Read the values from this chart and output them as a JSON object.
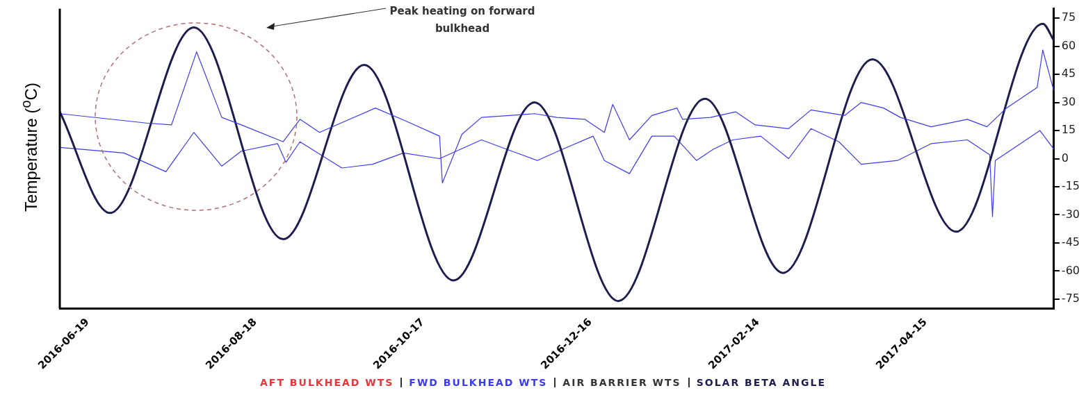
{
  "chart_data": {
    "type": "line",
    "ylabel": "Temperature ($^{o}$C)",
    "legend": "bottom",
    "xlim": [
      "2016-06-09",
      "2017-05-31"
    ],
    "xticks": [
      "2016-06-19",
      "2016-08-18",
      "2016-10-17",
      "2016-12-16",
      "2017-02-14",
      "2017-04-15"
    ],
    "ylim": [
      -80,
      80
    ],
    "yticks": [
      -75,
      -60,
      -45,
      -30,
      -15,
      0,
      15,
      30,
      45,
      60,
      75
    ],
    "annotations": [
      "Peak heating on forward bulkhead"
    ],
    "series": [
      {
        "name": "AFT BULKHEAD WTS",
        "color": "#e2393f"
      },
      {
        "name": "FWD BULKHEAD WTS",
        "color": "#3b3bef",
        "x": [
          "2016-06-09",
          "2016-07-10",
          "2016-07-19",
          "2016-07-28",
          "2016-08-06",
          "2016-08-13",
          "2016-08-28",
          "2016-09-03",
          "2016-09-10",
          "2016-09-30",
          "2016-10-11",
          "2016-10-23",
          "2016-10-24",
          "2016-10-31",
          "2016-11-07",
          "2016-11-17",
          "2016-11-26",
          "2016-12-04",
          "2016-12-14",
          "2016-12-21",
          "2016-12-24",
          "2016-12-30",
          "2017-01-07",
          "2017-01-16",
          "2017-01-18",
          "2017-01-28",
          "2017-02-06",
          "2017-02-13",
          "2017-02-25",
          "2017-03-05",
          "2017-03-17",
          "2017-03-23",
          "2017-03-31",
          "2017-04-06",
          "2017-04-17",
          "2017-04-30",
          "2017-05-07",
          "2017-05-14",
          "2017-05-25",
          "2017-05-27",
          "2017-05-31"
        ],
        "values": [
          24,
          19,
          18,
          57,
          22,
          18,
          9,
          21,
          14,
          27,
          20,
          12,
          -13,
          13,
          22,
          23,
          24,
          22,
          21,
          14,
          29,
          10,
          23,
          27,
          21,
          22,
          25,
          18,
          16,
          26,
          23,
          30,
          27,
          22,
          17,
          21,
          17,
          27,
          38,
          58,
          36
        ]
      },
      {
        "name": "AIR BARRIER WTS",
        "color": "#333333"
      },
      {
        "name": "SOLAR BETA ANGLE",
        "color": "#1d1d4e",
        "x": [
          "2016-06-09",
          "2016-06-27",
          "2016-07-27",
          "2016-08-28",
          "2016-09-26",
          "2016-10-28",
          "2016-11-26",
          "2016-12-26",
          "2017-01-26",
          "2017-02-23",
          "2017-03-27",
          "2017-04-26",
          "2017-05-27",
          "2017-05-31"
        ],
        "values": [
          25,
          -29,
          70,
          -43,
          50,
          -65,
          30,
          -76,
          32,
          -61,
          53,
          -39,
          72,
          63
        ]
      },
      {
        "color": "#3b3bef",
        "x": [
          "2016-06-09",
          "2016-07-02",
          "2016-07-17",
          "2016-07-27",
          "2016-08-06",
          "2016-08-13",
          "2016-08-26",
          "2016-08-29",
          "2016-09-03",
          "2016-09-18",
          "2016-09-29",
          "2016-10-10",
          "2016-10-23",
          "2016-11-07",
          "2016-11-16",
          "2016-11-27",
          "2016-12-06",
          "2016-12-17",
          "2016-12-21",
          "2016-12-30",
          "2017-01-03",
          "2017-01-07",
          "2017-01-15",
          "2017-01-23",
          "2017-01-29",
          "2017-02-05",
          "2017-02-15",
          "2017-02-25",
          "2017-03-05",
          "2017-03-15",
          "2017-03-23",
          "2017-04-05",
          "2017-04-17",
          "2017-04-30",
          "2017-05-08",
          "2017-05-09",
          "2017-05-10",
          "2017-05-19",
          "2017-05-26",
          "2017-05-31"
        ],
        "values": [
          6,
          3,
          -7,
          14,
          -4,
          4,
          8,
          -2,
          9,
          -5,
          -3,
          3,
          0,
          10,
          5,
          -1,
          5,
          12,
          -1,
          -8,
          2,
          12,
          12,
          -1,
          5,
          10,
          12,
          0,
          16,
          9,
          -3,
          -1,
          8,
          10,
          2,
          -31,
          -1,
          8,
          15,
          5
        ]
      }
    ]
  }
}
